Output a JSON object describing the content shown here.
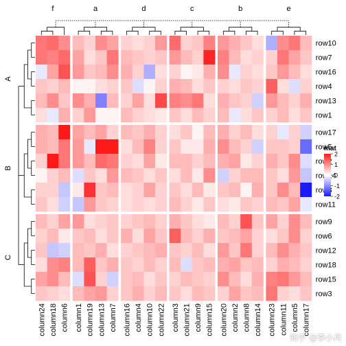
{
  "watermark": "知乎 @李小月",
  "chart_data": {
    "type": "heatmap",
    "legend": {
      "title": "mat",
      "ticks": [
        2,
        1,
        0,
        -1,
        -2
      ],
      "placement": "right"
    },
    "colors": {
      "low": "#1a1aff",
      "mid": "#ffffff",
      "high": "#ff1a1a",
      "split": "#ffffff",
      "dendrogram": "#000000"
    },
    "column_groups": [
      {
        "label": "f",
        "columns": [
          "column24",
          "column18",
          "column6"
        ]
      },
      {
        "label": "a",
        "columns": [
          "column1",
          "column19",
          "column13",
          "column7"
        ]
      },
      {
        "label": "d",
        "columns": [
          "column16",
          "column4",
          "column10",
          "column22"
        ]
      },
      {
        "label": "c",
        "columns": [
          "column3",
          "column21",
          "column9",
          "column15"
        ]
      },
      {
        "label": "b",
        "columns": [
          "column20",
          "column2",
          "column8",
          "column14"
        ]
      },
      {
        "label": "e",
        "columns": [
          "column23",
          "column11",
          "column5",
          "column17"
        ]
      }
    ],
    "row_groups": [
      {
        "label": "A",
        "rows": [
          "row10",
          "row7",
          "row16",
          "row4",
          "row13",
          "row1"
        ]
      },
      {
        "label": "B",
        "rows": [
          "row17",
          "row5",
          "row2",
          "row14",
          "row8",
          "row11"
        ]
      },
      {
        "label": "C",
        "rows": [
          "row9",
          "row6",
          "row12",
          "row18",
          "row15",
          "row3"
        ]
      }
    ],
    "values": [
      [
        1.2,
        1.3,
        1.0,
        0.6,
        0.4,
        1.0,
        0.8,
        0.4,
        0.3,
        0.4,
        0.9,
        1.3,
        0.4,
        0.5,
        1.1,
        0.9,
        0.7,
        0.5,
        0.3,
        -0.7,
        1.0,
        1.2,
        0.6
      ],
      [
        1.2,
        1.1,
        1.3,
        0.8,
        0.3,
        0.5,
        1.2,
        0.6,
        0.5,
        0.4,
        0.5,
        0.9,
        0.6,
        0.4,
        1.9,
        1.1,
        0.6,
        0.3,
        0.4,
        0.4,
        1.2,
        0.8,
        0.5
      ],
      [
        -0.2,
        0.8,
        1.5,
        0.9,
        0.5,
        0.6,
        1.0,
        0.7,
        0.4,
        -0.7,
        0.3,
        0.4,
        0.1,
        0.2,
        0.7,
        1.0,
        -0.2,
        0.4,
        0.3,
        0.5,
        0.9,
        0.6,
        0.3
      ],
      [
        0.5,
        0.4,
        0.6,
        0.1,
        0.1,
        0.3,
        0.4,
        0.5,
        -0.3,
        0.1,
        0.4,
        0.7,
        0.6,
        0.3,
        0.5,
        0.4,
        0.3,
        0.5,
        0.4,
        1.4,
        0.3,
        -0.3,
        0.4
      ],
      [
        0.6,
        1.0,
        0.5,
        1.0,
        0.7,
        -1.1,
        0.6,
        0.4,
        0.8,
        0.3,
        1.6,
        1.1,
        1.0,
        1.2,
        0.3,
        0.7,
        0.5,
        0.4,
        -0.4,
        0.9,
        0.6,
        0.4,
        0.7
      ],
      [
        0.3,
        -0.2,
        0.7,
        0.4,
        0.9,
        0.1,
        0.1,
        0.6,
        0.4,
        0.3,
        0.2,
        0.5,
        0.3,
        0.6,
        0.4,
        0.6,
        -0.2,
        0.3,
        0.5,
        0.4,
        0.6,
        0.3,
        0.5
      ],
      [
        0.7,
        0.6,
        2.0,
        0.8,
        0.6,
        0.8,
        0.4,
        0.6,
        0.5,
        0.7,
        0.4,
        0.3,
        0.5,
        0.1,
        0.6,
        0.7,
        0.4,
        0.6,
        0.3,
        0.4,
        -0.2,
        0.4,
        -0.4
      ],
      [
        0.7,
        0.6,
        1.2,
        0.9,
        -0.2,
        2.1,
        2.2,
        0.3,
        0.6,
        1.1,
        0.4,
        0.5,
        0.2,
        0.2,
        0.7,
        1.0,
        0.6,
        0.4,
        -0.4,
        0.5,
        0.5,
        0.4,
        -1.3
      ],
      [
        0.4,
        2.0,
        1.2,
        0.9,
        0.6,
        1.3,
        1.2,
        0.4,
        0.3,
        0.8,
        0.2,
        0.6,
        0.6,
        0.4,
        0.6,
        0.7,
        0.8,
        0.2,
        0.4,
        0.7,
        0.5,
        1.0,
        -0.3
      ],
      [
        0.1,
        0.4,
        0.6,
        -0.3,
        0.5,
        0.3,
        0.9,
        0.6,
        0.5,
        0.3,
        0.5,
        0.3,
        0.6,
        0.2,
        1.0,
        -0.4,
        0.4,
        0.6,
        0.6,
        0.5,
        0.3,
        0.9,
        -0.5
      ],
      [
        0.4,
        0.4,
        -0.5,
        0.2,
        1.8,
        0.5,
        0.6,
        0.3,
        0.4,
        0.8,
        0.4,
        0.5,
        0.3,
        0.6,
        0.2,
        0.5,
        0.6,
        0.1,
        0.7,
        0.5,
        1.0,
        0.6,
        -2.0
      ],
      [
        0.5,
        0.3,
        -0.4,
        -0.5,
        0.9,
        0.5,
        0.4,
        0.3,
        0.4,
        0.3,
        0.4,
        0.6,
        0.4,
        0.2,
        0.5,
        0.3,
        0.2,
        0.5,
        0.4,
        0.6,
        0.5,
        0.8,
        -0.2
      ],
      [
        0.6,
        0.4,
        0.8,
        0.9,
        0.3,
        0.4,
        0.5,
        0.4,
        0.5,
        0.6,
        0.4,
        0.7,
        0.5,
        0.3,
        0.2,
        0.6,
        0.4,
        1.5,
        0.5,
        0.8,
        0.4,
        1.0,
        0.6
      ],
      [
        0.4,
        0.6,
        0.2,
        0.5,
        0.6,
        0.3,
        0.5,
        0.7,
        0.3,
        0.8,
        0.5,
        1.4,
        0.6,
        0.4,
        0.7,
        0.5,
        0.6,
        0.8,
        0.4,
        0.3,
        0.5,
        1.0,
        0.4
      ],
      [
        0.5,
        -0.5,
        -0.4,
        0.6,
        0.5,
        0.7,
        0.3,
        0.4,
        0.5,
        0.6,
        0.7,
        0.5,
        0.4,
        0.6,
        0.3,
        0.9,
        0.5,
        1.2,
        0.4,
        0.6,
        1.0,
        0.7,
        0.5
      ],
      [
        0.3,
        1.0,
        1.1,
        0.6,
        1.4,
        0.5,
        0.7,
        0.5,
        0.4,
        0.6,
        0.4,
        0.6,
        -0.3,
        0.5,
        0.6,
        0.7,
        0.8,
        0.5,
        0.6,
        0.4,
        0.7,
        0.6,
        0.4
      ],
      [
        0.8,
        1.0,
        0.6,
        -0.3,
        1.5,
        0.4,
        -0.4,
        0.5,
        0.6,
        0.3,
        0.5,
        0.4,
        0.6,
        0.5,
        0.4,
        1.0,
        0.6,
        0.3,
        0.7,
        1.1,
        1.2,
        0.9,
        0.6
      ],
      [
        0.5,
        0.4,
        0.3,
        0.6,
        0.8,
        0.9,
        0.4,
        0.5,
        0.7,
        0.4,
        0.6,
        0.5,
        0.3,
        0.6,
        0.5,
        0.4,
        0.8,
        0.5,
        0.6,
        1.2,
        0.4,
        0.3,
        0.5
      ]
    ]
  }
}
